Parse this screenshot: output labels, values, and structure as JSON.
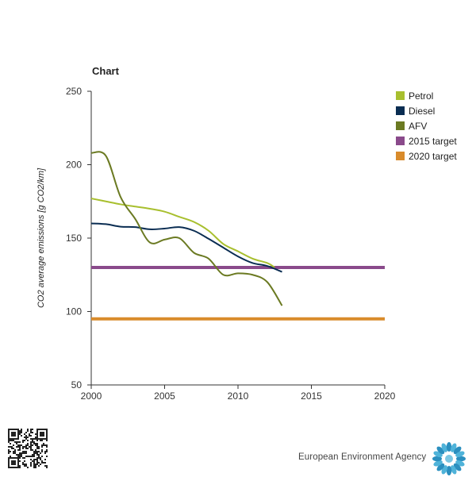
{
  "chart_data": {
    "type": "line",
    "title": "Chart",
    "ylabel": "CO2 average emissions [g CO2/km]",
    "xlabel": "",
    "xlim": [
      2000,
      2020
    ],
    "ylim": [
      50,
      250
    ],
    "xticks": [
      2000,
      2005,
      2010,
      2015,
      2020
    ],
    "yticks": [
      50,
      100,
      150,
      200,
      250
    ],
    "grid": false,
    "legend_position": "top-right",
    "series": [
      {
        "name": "Petrol",
        "color": "#a8bf2e",
        "x": [
          2000,
          2001,
          2002,
          2003,
          2004,
          2005,
          2006,
          2007,
          2008,
          2009,
          2010,
          2011,
          2012,
          2012.5
        ],
        "y": [
          177,
          175,
          173,
          171.5,
          170,
          168,
          164.5,
          161,
          155,
          146,
          141,
          136,
          133,
          130
        ]
      },
      {
        "name": "Diesel",
        "color": "#0a2d52",
        "x": [
          2000,
          2001,
          2002,
          2003,
          2004,
          2005,
          2006,
          2007,
          2008,
          2009,
          2010,
          2011,
          2012,
          2013
        ],
        "y": [
          160,
          159.5,
          157.8,
          157.5,
          156,
          156.5,
          157.5,
          155,
          149.5,
          143.5,
          137.5,
          133,
          131,
          127
        ]
      },
      {
        "name": "AFV",
        "color": "#6b7a22",
        "x": [
          2000,
          2001,
          2002,
          2003,
          2004,
          2005,
          2006,
          2007,
          2008,
          2009,
          2010,
          2011,
          2012,
          2013
        ],
        "y": [
          208,
          206,
          178,
          163,
          147,
          149,
          150,
          140,
          136,
          125,
          126,
          125,
          120,
          104
        ]
      },
      {
        "name": "2015 target",
        "color": "#8a4a8b",
        "x": [
          2000,
          2020
        ],
        "y": [
          130,
          130
        ]
      },
      {
        "name": "2020 target",
        "color": "#d98b2b",
        "x": [
          2000,
          2020
        ],
        "y": [
          95,
          95
        ]
      }
    ]
  },
  "footer": {
    "agency": "European Environment Agency"
  }
}
